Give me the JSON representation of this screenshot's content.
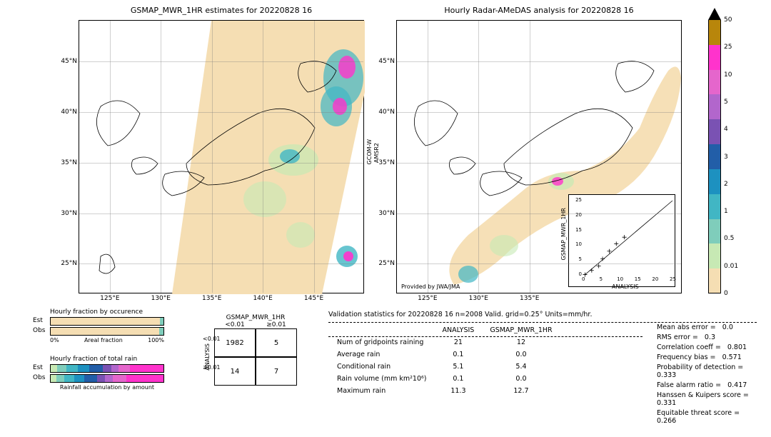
{
  "map_left": {
    "title": "GSMAP_MWR_1HR estimates for 20220828 16",
    "side_label_1": "GCOM-W",
    "side_label_2": "AMSR2",
    "lat_ticks": [
      "25°N",
      "30°N",
      "35°N",
      "40°N",
      "45°N"
    ],
    "lon_ticks": [
      "125°E",
      "130°E",
      "135°E",
      "140°E",
      "145°E"
    ],
    "x_min": 122,
    "x_max": 150,
    "y_min": 22,
    "y_max": 49
  },
  "map_right": {
    "title": "Hourly Radar-AMeDAS analysis for 20220828 16",
    "footer": "Provided by JWA/JMA",
    "lat_ticks": [
      "25°N",
      "30°N",
      "35°N",
      "40°N",
      "45°N"
    ],
    "lon_ticks": [
      "125°E",
      "130°E",
      "135°E"
    ]
  },
  "colorbar": {
    "ticks": [
      "0",
      "0.01",
      "0.5",
      "1",
      "2",
      "3",
      "4",
      "5",
      "10",
      "25",
      "50"
    ],
    "colors": [
      "#f5deb3",
      "#c7e9b4",
      "#7fcdbb",
      "#41b6c4",
      "#1d91c0",
      "#225ea8",
      "#7a52b3",
      "#b266cc",
      "#e566cc",
      "#ff33cc",
      "#b8860b"
    ]
  },
  "scatter": {
    "xlabel": "ANALYSIS",
    "ylabel": "GSMAP_MWR_1HR",
    "ticks": [
      "0",
      "5",
      "10",
      "15",
      "20",
      "25"
    ],
    "points": [
      [
        0.1,
        0.1
      ],
      [
        2,
        1.5
      ],
      [
        4,
        3
      ],
      [
        5.1,
        5.4
      ],
      [
        7,
        8
      ],
      [
        9,
        10.5
      ],
      [
        11.3,
        12.7
      ]
    ]
  },
  "fraction_occ": {
    "title": "Hourly fraction by occurence",
    "est_label": "Est",
    "obs_label": "Obs",
    "axis_left": "0%",
    "axis_right": "100%",
    "axis_title": "Areal fraction",
    "est": {
      "nonrain": 0.97,
      "rain": 0.03
    },
    "obs": {
      "nonrain": 0.96,
      "rain": 0.04
    },
    "nonrain_color": "#f5deb3",
    "rain_color": "#7fcdbb"
  },
  "fraction_total": {
    "title": "Hourly fraction of total rain",
    "subtitle": "Rainfall accumulation by amount",
    "est_segs": [
      {
        "w": 0.06,
        "c": "#c7e9b4"
      },
      {
        "w": 0.08,
        "c": "#7fcdbb"
      },
      {
        "w": 0.1,
        "c": "#41b6c4"
      },
      {
        "w": 0.1,
        "c": "#1d91c0"
      },
      {
        "w": 0.12,
        "c": "#225ea8"
      },
      {
        "w": 0.08,
        "c": "#7a52b3"
      },
      {
        "w": 0.06,
        "c": "#b266cc"
      },
      {
        "w": 0.1,
        "c": "#e566cc"
      },
      {
        "w": 0.3,
        "c": "#ff33cc"
      }
    ],
    "obs_segs": [
      {
        "w": 0.05,
        "c": "#c7e9b4"
      },
      {
        "w": 0.07,
        "c": "#7fcdbb"
      },
      {
        "w": 0.09,
        "c": "#41b6c4"
      },
      {
        "w": 0.09,
        "c": "#1d91c0"
      },
      {
        "w": 0.11,
        "c": "#225ea8"
      },
      {
        "w": 0.07,
        "c": "#7a52b3"
      },
      {
        "w": 0.07,
        "c": "#b266cc"
      },
      {
        "w": 0.12,
        "c": "#e566cc"
      },
      {
        "w": 0.33,
        "c": "#ff33cc"
      }
    ]
  },
  "contingency": {
    "header": "GSMAP_MWR_1HR",
    "side": "ANALYSIS",
    "col1": "<0.01",
    "col2": "≥0.01",
    "cells": [
      [
        "1982",
        "5"
      ],
      [
        "14",
        "7"
      ]
    ]
  },
  "stats_header": "Validation statistics for 20220828 16  n=2008 Valid. grid=0.25°  Units=mm/hr.",
  "stats_table": {
    "col1": "ANALYSIS",
    "col2": "GSMAP_MWR_1HR",
    "rows": [
      {
        "label": "Num of gridpoints raining",
        "a": "21",
        "b": "12"
      },
      {
        "label": "Average rain",
        "a": "0.1",
        "b": "0.0"
      },
      {
        "label": "Conditional rain",
        "a": "5.1",
        "b": "5.4"
      },
      {
        "label": "Rain volume (mm km²10⁶)",
        "a": "0.1",
        "b": "0.0"
      },
      {
        "label": "Maximum rain",
        "a": "11.3",
        "b": "12.7"
      }
    ]
  },
  "metrics": [
    {
      "label": "Mean abs error =",
      "val": "0.0"
    },
    {
      "label": "RMS error =",
      "val": "0.3"
    },
    {
      "label": "Correlation coeff =",
      "val": "0.801"
    },
    {
      "label": "Frequency bias =",
      "val": "0.571"
    },
    {
      "label": "Probability of detection =",
      "val": "0.333"
    },
    {
      "label": "False alarm ratio =",
      "val": "0.417"
    },
    {
      "label": "Hanssen & Kuipers score =",
      "val": "0.331"
    },
    {
      "label": "Equitable threat score =",
      "val": "0.266"
    }
  ]
}
